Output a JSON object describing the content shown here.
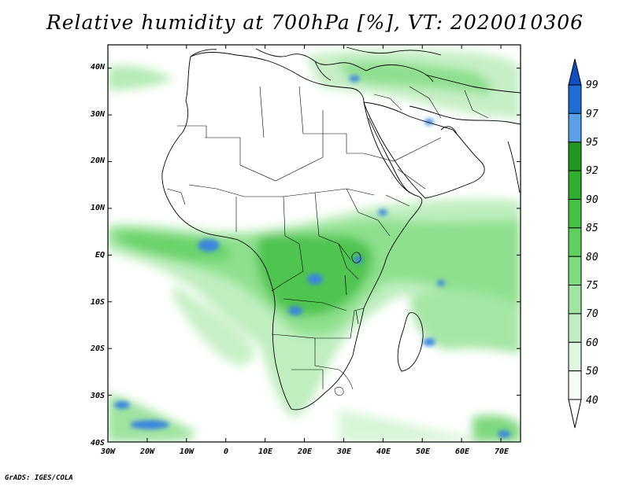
{
  "title": "Relative humidity at 700hPa [%], VT: 2020010306",
  "credit": "GrADS: IGES/COLA",
  "map": {
    "lat_labels": [
      "40N",
      "30N",
      "20N",
      "10N",
      "EQ",
      "10S",
      "20S",
      "30S",
      "40S"
    ],
    "lon_labels": [
      "30W",
      "20W",
      "10W",
      "0",
      "10E",
      "20E",
      "30E",
      "40E",
      "50E",
      "60E",
      "70E"
    ],
    "lat_range": [
      -40,
      45
    ],
    "lon_range": [
      -30,
      75
    ]
  },
  "colorbar": {
    "levels": [
      "99",
      "97",
      "95",
      "92",
      "90",
      "85",
      "80",
      "75",
      "70",
      "60",
      "50",
      "40"
    ],
    "colors": [
      "#1e6ed8",
      "#5aa0e8",
      "#1f9a1f",
      "#2fae2f",
      "#44c244",
      "#5fd05f",
      "#7ddc7d",
      "#a0e6a0",
      "#c2efc2",
      "#dff7df",
      "#f4fcf4"
    ],
    "top_color": "#1050c0",
    "bottom_color": "#ffffff"
  }
}
